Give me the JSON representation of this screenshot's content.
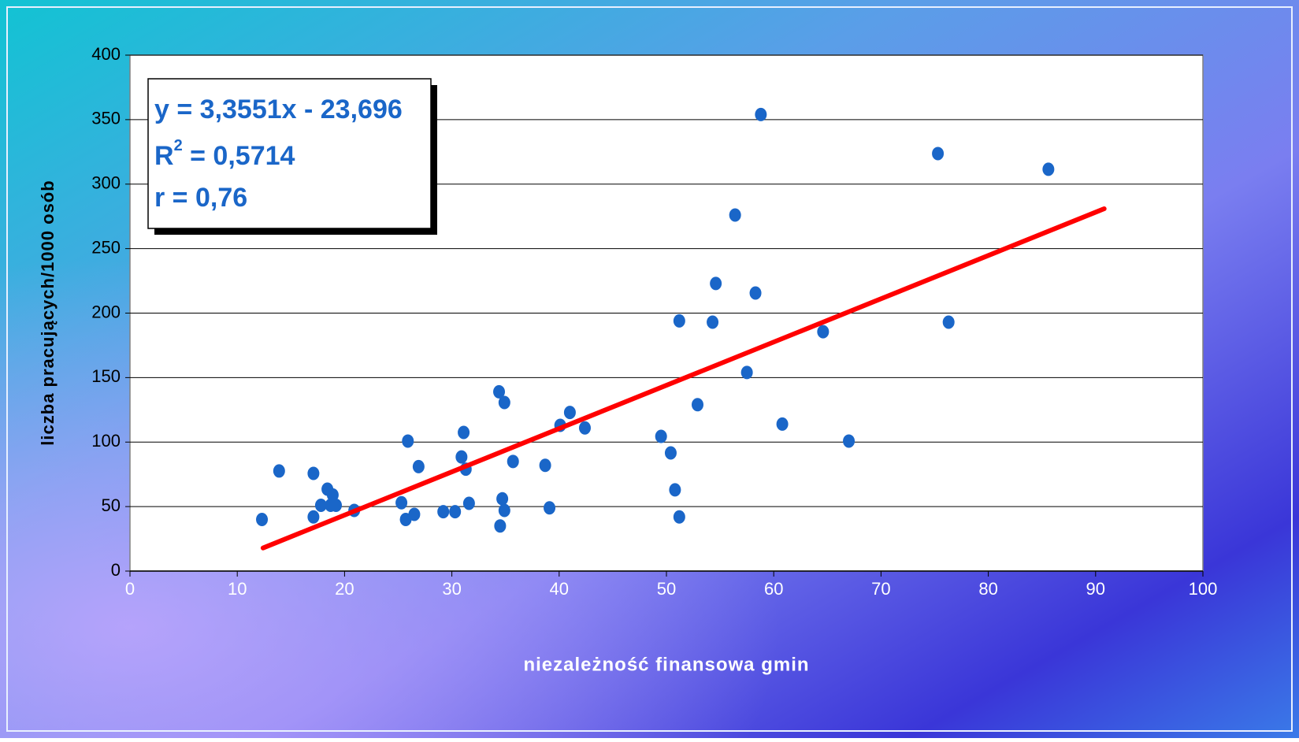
{
  "chart_data": {
    "type": "scatter",
    "xlabel": "niezależność finansowa gmin",
    "ylabel": "liczba pracujących/1000 osób",
    "xlim": [
      0,
      100
    ],
    "xticks": [
      0,
      10,
      20,
      30,
      40,
      50,
      60,
      70,
      80,
      90,
      100
    ],
    "ylim": [
      0,
      400
    ],
    "yticks": [
      0,
      50,
      100,
      150,
      200,
      250,
      300,
      350,
      400
    ],
    "grid": true,
    "series": [
      {
        "type": "scatter",
        "color": "#1a66c8",
        "x": [
          12.3,
          13.9,
          17.1,
          17.1,
          17.8,
          18.4,
          18.7,
          18.9,
          19.2,
          20.9,
          25.3,
          25.7,
          25.9,
          26.5,
          26.9,
          29.2,
          30.3,
          30.9,
          31.1,
          31.3,
          31.6,
          34.4,
          34.5,
          34.7,
          34.9,
          34.9,
          35.7,
          38.7,
          39.1,
          40.1,
          41.0,
          42.4,
          49.5,
          50.4,
          50.8,
          51.2,
          51.2,
          52.9,
          54.3,
          54.6,
          56.4,
          57.5,
          58.3,
          58.8,
          60.8,
          64.6,
          67.0,
          75.3,
          76.3,
          85.6
        ],
        "values": [
          40,
          77.6,
          75.7,
          42,
          51,
          63.5,
          51,
          59,
          51,
          47,
          53,
          40,
          100.8,
          44,
          81,
          46,
          46,
          88.5,
          107.5,
          79,
          52.5,
          139,
          35,
          56,
          130.7,
          47,
          85,
          82,
          49,
          113,
          123,
          111,
          104.4,
          91.6,
          63,
          194,
          42,
          129,
          193,
          223,
          276,
          154,
          215.6,
          354,
          114,
          185.6,
          100.8,
          323.7,
          193,
          311.5
        ]
      },
      {
        "type": "line",
        "color": "#ff0000",
        "x": [
          12.4,
          90.8
        ],
        "values": [
          17.9,
          280.9
        ]
      }
    ],
    "annotation": {
      "equation": "y = 3,3551x - 23,696",
      "r_squared": {
        "base": "R",
        "sup": "2",
        "text": " = 0,5714"
      },
      "r": "r = 0,76"
    }
  }
}
